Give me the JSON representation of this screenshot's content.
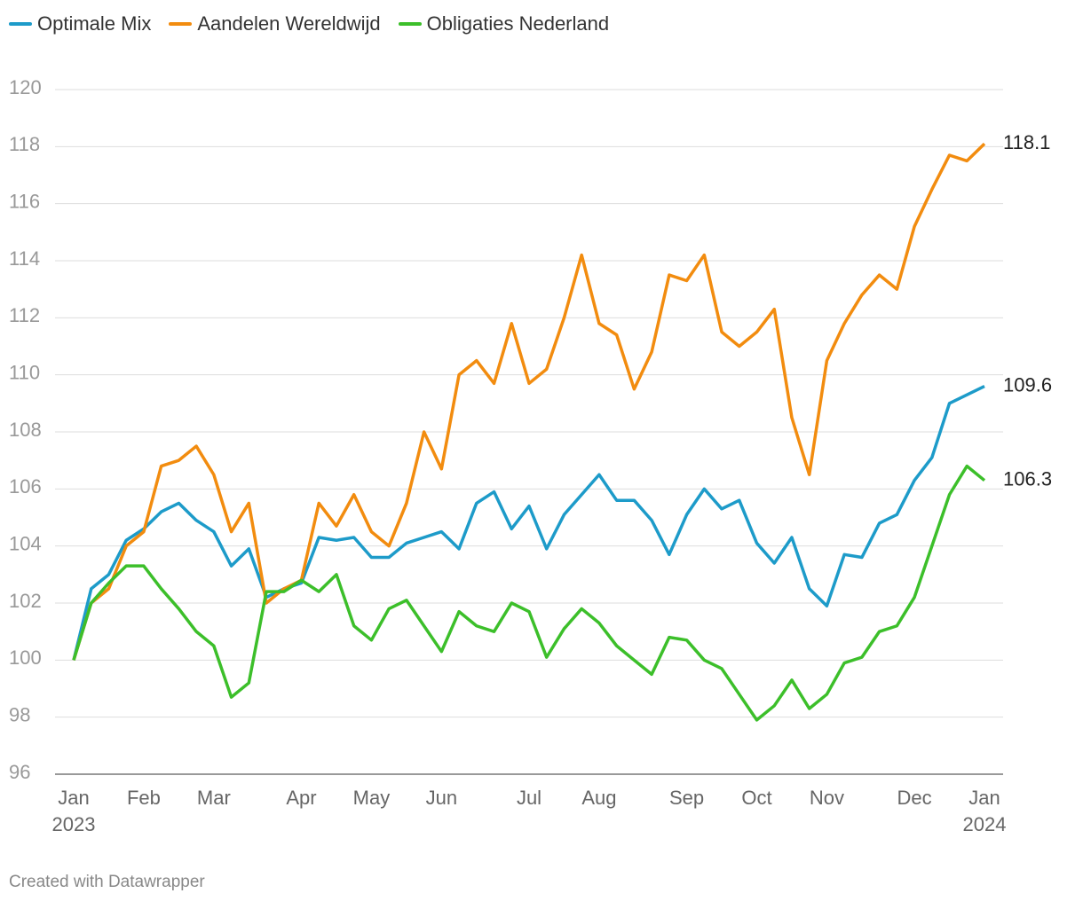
{
  "chart_data": {
    "type": "line",
    "categories": [
      "Jan 2023",
      null,
      null,
      null,
      "Feb",
      null,
      null,
      null,
      "Mar",
      null,
      null,
      null,
      null,
      "Apr",
      null,
      null,
      null,
      "May",
      null,
      null,
      null,
      "Jun",
      null,
      null,
      null,
      null,
      "Jul",
      null,
      null,
      null,
      "Aug",
      null,
      null,
      null,
      null,
      "Sep",
      null,
      null,
      null,
      "Oct",
      null,
      null,
      null,
      "Nov",
      null,
      null,
      null,
      null,
      "Dec",
      null,
      null,
      null,
      "Jan 2024"
    ],
    "series": [
      {
        "name": "Optimale Mix",
        "color": "#1d9bc9",
        "values": [
          100,
          102.5,
          103,
          104.2,
          104.6,
          105.2,
          105.5,
          104.9,
          104.5,
          103.3,
          103.9,
          102.2,
          102.5,
          102.7,
          104.3,
          104.2,
          104.3,
          103.6,
          103.6,
          104.1,
          104.3,
          104.5,
          103.9,
          105.5,
          105.9,
          104.6,
          105.4,
          103.9,
          105.1,
          105.8,
          106.5,
          105.6,
          105.6,
          104.9,
          103.7,
          105.1,
          106,
          105.3,
          105.6,
          104.1,
          103.4,
          104.3,
          102.5,
          101.9,
          103.7,
          103.6,
          104.8,
          105.1,
          106.3,
          107.1,
          109,
          109.3,
          109.6
        ]
      },
      {
        "name": "Aandelen Wereldwijd",
        "color": "#f28c0f",
        "values": [
          100,
          102,
          102.5,
          104,
          104.5,
          106.8,
          107,
          107.5,
          106.5,
          104.5,
          105.5,
          102,
          102.5,
          102.8,
          105.5,
          104.7,
          105.8,
          104.5,
          104,
          105.5,
          108,
          106.7,
          110,
          110.5,
          109.7,
          111.8,
          109.7,
          110.2,
          112,
          114.2,
          111.8,
          111.4,
          109.5,
          110.8,
          113.5,
          113.3,
          114.2,
          111.5,
          111,
          111.5,
          112.3,
          108.5,
          106.5,
          110.5,
          111.8,
          112.8,
          113.5,
          113,
          115.2,
          116.5,
          117.7,
          117.5,
          118.1
        ]
      },
      {
        "name": "Obligaties Nederland",
        "color": "#3cbf2a",
        "values": [
          100,
          102,
          102.7,
          103.3,
          103.3,
          102.5,
          101.8,
          101,
          100.5,
          98.7,
          99.2,
          102.4,
          102.4,
          102.8,
          102.4,
          103,
          101.2,
          100.7,
          101.8,
          102.1,
          101.2,
          100.3,
          101.7,
          101.2,
          101,
          102,
          101.7,
          100.1,
          101.1,
          101.8,
          101.3,
          100.5,
          100,
          99.5,
          100.8,
          100.7,
          100,
          99.7,
          98.8,
          97.9,
          98.4,
          99.3,
          98.3,
          98.8,
          99.9,
          100.1,
          101,
          101.2,
          102.2,
          104,
          105.8,
          106.8,
          106.3
        ]
      }
    ],
    "ylim": [
      96,
      120
    ],
    "yticks": [
      96,
      98,
      100,
      102,
      104,
      106,
      108,
      110,
      112,
      114,
      116,
      118,
      120
    ],
    "grid": true,
    "credit": "Created with Datawrapper"
  }
}
